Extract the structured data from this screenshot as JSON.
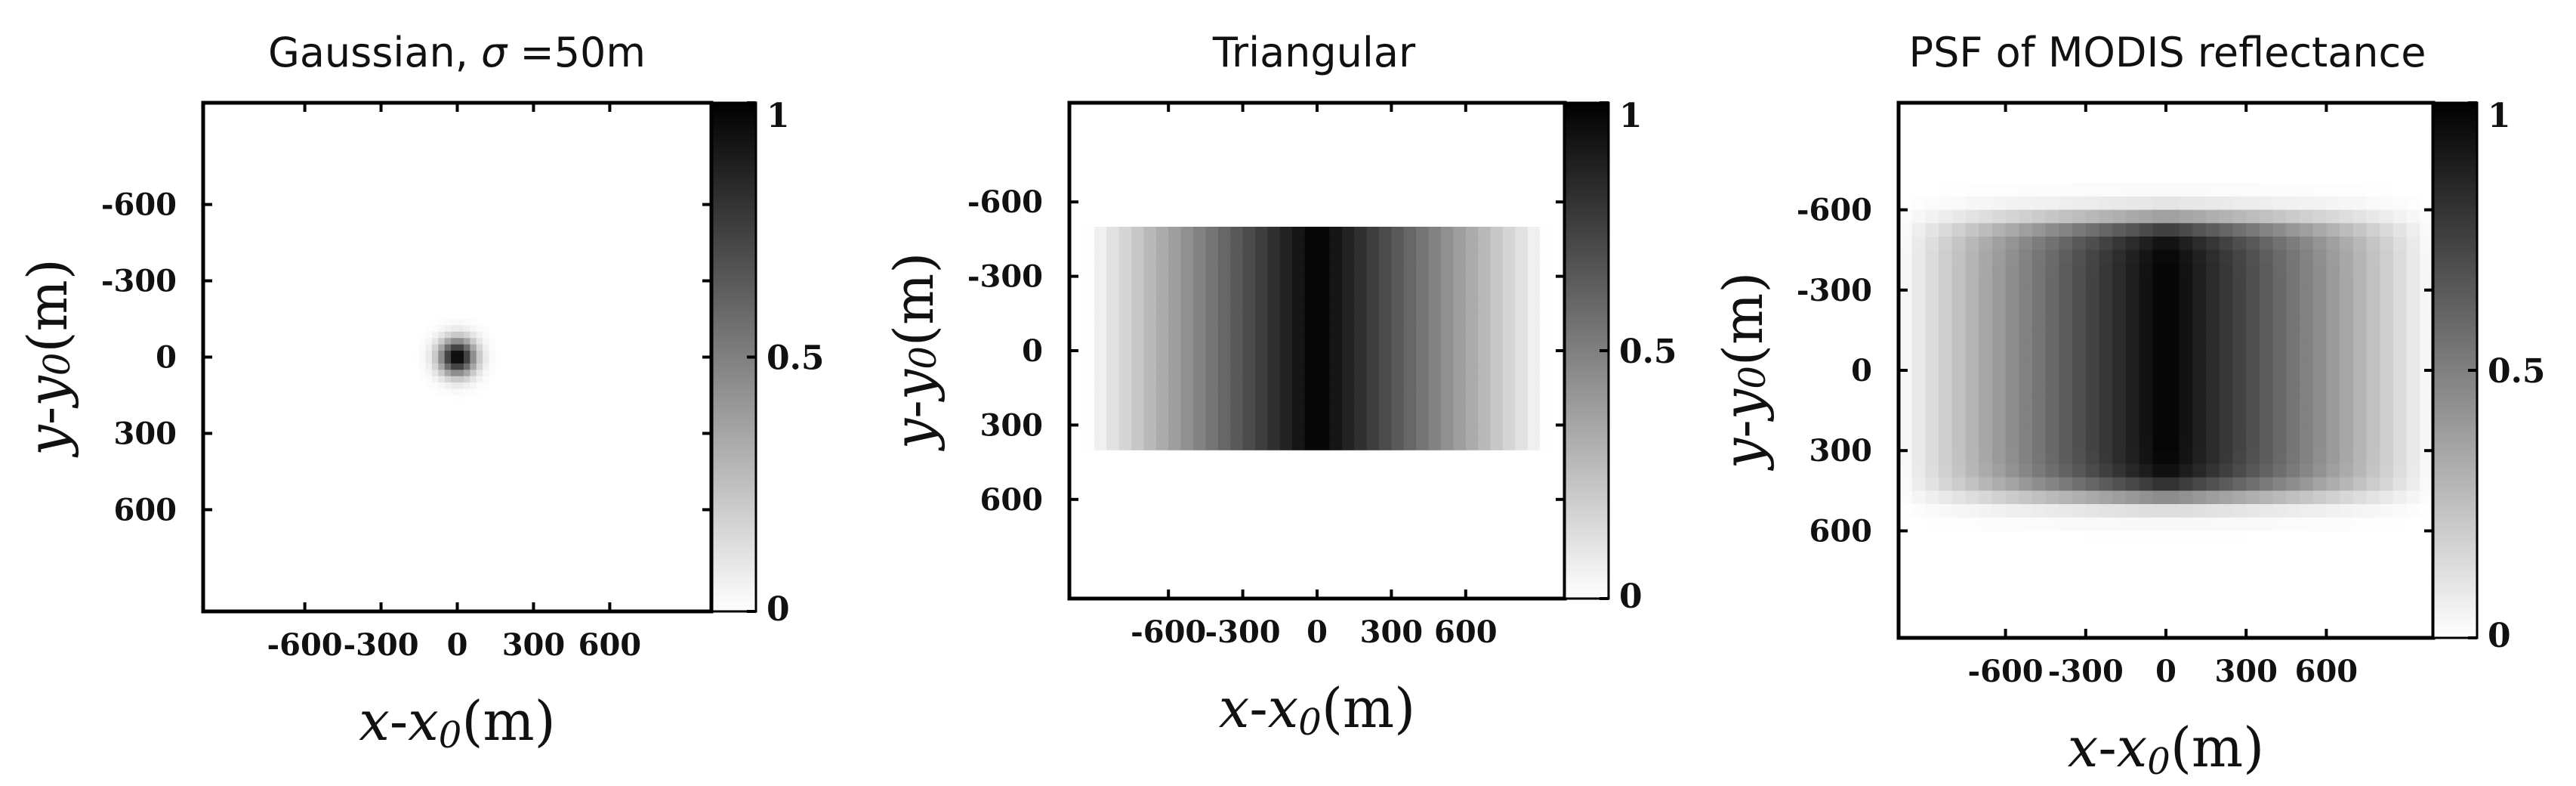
{
  "chart_data": [
    {
      "type": "heatmap",
      "title_prefix": "Gaussian, ",
      "title_symbol": "σ",
      "title_suffix": " =50m",
      "kernel": "gaussian",
      "sigma": 50,
      "xlabel": {
        "var": "x",
        "sep": "-",
        "ref": "x",
        "sub": "0",
        "unit": "(m)"
      },
      "ylabel": {
        "var": "y",
        "sep": "-",
        "ref": "y",
        "sub": "0",
        "unit": "(m)"
      },
      "xlim": [
        -1000,
        1000
      ],
      "ylim": [
        -1000,
        1000
      ],
      "xticks": [
        -600,
        -300,
        0,
        300,
        600
      ],
      "yticks": [
        -600,
        -300,
        0,
        300,
        600
      ],
      "xticklabels": [
        "-600",
        "-300",
        "0",
        "300",
        "600"
      ],
      "yticklabels": [
        "-600",
        "-300",
        "0",
        "300",
        "600"
      ],
      "colorbar": {
        "min": 0,
        "max": 1,
        "ticks": [
          0,
          0.5,
          1
        ],
        "ticklabels": [
          "0",
          "0.5",
          "1"
        ],
        "colormap": "gray_reversed"
      }
    },
    {
      "type": "heatmap",
      "title_prefix": "Triangular",
      "title_symbol": "",
      "title_suffix": "",
      "kernel": "triangular",
      "x_half_width": 930,
      "y_extent": [
        -520,
        390
      ],
      "xlabel": {
        "var": "x",
        "sep": "-",
        "ref": "x",
        "sub": "0",
        "unit": "(m)"
      },
      "ylabel": {
        "var": "y",
        "sep": "-",
        "ref": "y",
        "sub": "0",
        "unit": "(m)"
      },
      "xlim": [
        -1000,
        1000
      ],
      "ylim": [
        -1000,
        1000
      ],
      "xticks": [
        -600,
        -300,
        0,
        300,
        600
      ],
      "yticks": [
        -600,
        -300,
        0,
        300,
        600
      ],
      "xticklabels": [
        "-600",
        "-300",
        "0",
        "300",
        "600"
      ],
      "yticklabels": [
        "-600",
        "-300",
        "0",
        "300",
        "600"
      ],
      "colorbar": {
        "min": 0,
        "max": 1,
        "ticks": [
          0,
          0.5,
          1
        ],
        "ticklabels": [
          "0",
          "0.5",
          "1"
        ],
        "colormap": "gray_reversed"
      }
    },
    {
      "type": "heatmap",
      "title_prefix": "PSF of MODIS reflectance",
      "title_symbol": "",
      "title_suffix": "",
      "kernel": "modis_psf",
      "x_half_width": 1000,
      "y_extent": [
        -560,
        470
      ],
      "xlabel": {
        "var": "x",
        "sep": "-",
        "ref": "x",
        "sub": "0",
        "unit": "(m)"
      },
      "ylabel": {
        "var": "y",
        "sep": "-",
        "ref": "y",
        "sub": "0",
        "unit": "(m)"
      },
      "xlim": [
        -1000,
        1000
      ],
      "ylim": [
        -1000,
        1000
      ],
      "xticks": [
        -600,
        -300,
        0,
        300,
        600
      ],
      "yticks": [
        -600,
        -300,
        0,
        300,
        600
      ],
      "xticklabels": [
        "-600",
        "-300",
        "0",
        "300",
        "600"
      ],
      "yticklabels": [
        "-600",
        "-300",
        "0",
        "300",
        "600"
      ],
      "colorbar": {
        "min": 0,
        "max": 1,
        "ticks": [
          0,
          0.5,
          1
        ],
        "ticklabels": [
          "0",
          "0.5",
          "1"
        ],
        "colormap": "gray_reversed"
      }
    }
  ]
}
